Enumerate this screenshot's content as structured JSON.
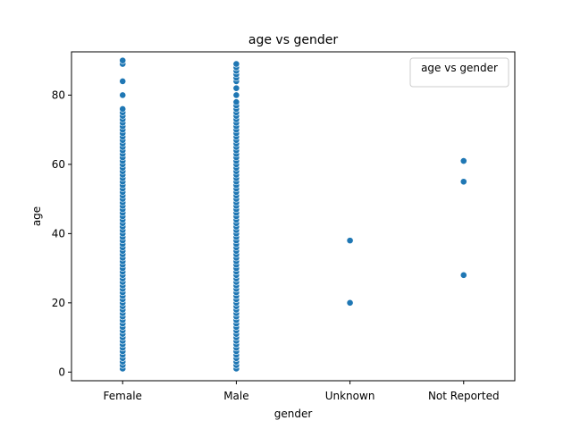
{
  "chart_data": {
    "type": "scatter",
    "title": "age vs gender",
    "xlabel": "gender",
    "ylabel": "age",
    "categories": [
      "Female",
      "Male",
      "Unknown",
      "Not Reported"
    ],
    "yticks": [
      0,
      20,
      40,
      60,
      80
    ],
    "ylim": [
      -2.5,
      92.5
    ],
    "grid": false,
    "legend": {
      "title": "age vs gender",
      "placement": "top-right"
    },
    "marker_color": "#1f77b4",
    "series": [
      {
        "points": [
          {
            "x": "Female",
            "y": [
              1,
              2,
              3,
              4,
              5,
              6,
              7,
              8,
              9,
              10,
              11,
              12,
              13,
              14,
              15,
              16,
              17,
              18,
              19,
              20,
              21,
              22,
              23,
              24,
              25,
              26,
              27,
              28,
              29,
              30,
              31,
              32,
              33,
              34,
              35,
              36,
              37,
              38,
              39,
              40,
              41,
              42,
              43,
              44,
              45,
              46,
              47,
              48,
              49,
              50,
              51,
              52,
              53,
              54,
              55,
              56,
              57,
              58,
              59,
              60,
              61,
              62,
              63,
              64,
              65,
              66,
              67,
              68,
              69,
              70,
              71,
              72,
              73,
              74,
              75,
              76,
              80,
              84,
              89,
              90
            ]
          },
          {
            "x": "Male",
            "y": [
              1,
              2,
              3,
              4,
              5,
              6,
              7,
              8,
              9,
              10,
              11,
              12,
              13,
              14,
              15,
              16,
              17,
              18,
              19,
              20,
              21,
              22,
              23,
              24,
              25,
              26,
              27,
              28,
              29,
              30,
              31,
              32,
              33,
              34,
              35,
              36,
              37,
              38,
              39,
              40,
              41,
              42,
              43,
              44,
              45,
              46,
              47,
              48,
              49,
              50,
              51,
              52,
              53,
              54,
              55,
              56,
              57,
              58,
              59,
              60,
              61,
              62,
              63,
              64,
              65,
              66,
              67,
              68,
              69,
              70,
              71,
              72,
              73,
              74,
              75,
              76,
              77,
              78,
              80,
              82,
              84,
              85,
              86,
              87,
              88,
              89
            ]
          },
          {
            "x": "Unknown",
            "y": [
              20,
              38
            ]
          },
          {
            "x": "Not Reported",
            "y": [
              28,
              55,
              61
            ]
          }
        ]
      }
    ]
  }
}
